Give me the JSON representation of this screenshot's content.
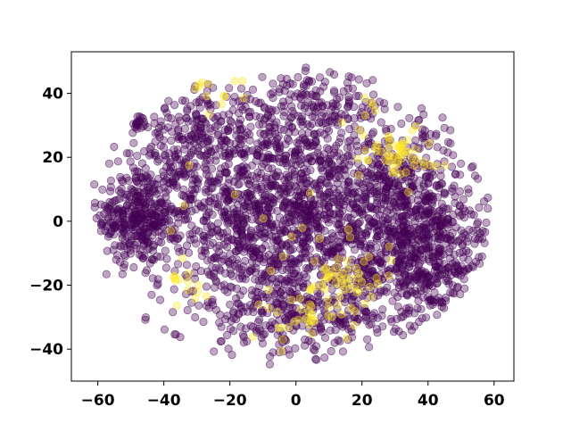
{
  "chart_data": {
    "type": "scatter",
    "title": "",
    "xlabel": "",
    "ylabel": "",
    "xlim": [
      -68,
      66
    ],
    "ylim": [
      -50,
      53
    ],
    "xticks": [
      "−60",
      "−40",
      "−20",
      "0",
      "20",
      "40",
      "60"
    ],
    "xtick_values": [
      -60,
      -40,
      -20,
      0,
      20,
      40,
      60
    ],
    "yticks": [
      "40",
      "20",
      "0",
      "−20",
      "−40"
    ],
    "ytick_values": [
      40,
      20,
      0,
      -20,
      -40
    ],
    "grid": false,
    "legend": "none",
    "point_alpha": 0.35,
    "colors": {
      "class_0": "#440154",
      "class_1": "#fde725",
      "axes": "#000000"
    },
    "series": [
      {
        "color": "#440154",
        "clusters": [
          {
            "cx": -48,
            "cy": 2,
            "sx": 6,
            "sy": 8,
            "n": 320
          },
          {
            "cx": -8,
            "cy": 2,
            "sx": 18,
            "sy": 17,
            "n": 1300
          },
          {
            "cx": 38,
            "cy": -10,
            "sx": 11,
            "sy": 12,
            "n": 600
          },
          {
            "cx": 30,
            "cy": 12,
            "sx": 14,
            "sy": 10,
            "n": 250
          },
          {
            "cx": -30,
            "cy": 25,
            "sx": 12,
            "sy": 8,
            "n": 200
          },
          {
            "cx": 0,
            "cy": -30,
            "sx": 14,
            "sy": 6,
            "n": 200
          },
          {
            "cx": 5,
            "cy": 36,
            "sx": 12,
            "sy": 5,
            "n": 150
          },
          {
            "cx": -48,
            "cy": 31,
            "sx": 1.5,
            "sy": 1.2,
            "n": 16
          },
          {
            "cx": 20,
            "cy": 0,
            "sx": 16,
            "sy": 18,
            "n": 250
          }
        ]
      },
      {
        "color": "#fde725",
        "clusters": [
          {
            "cx": 30,
            "cy": 22,
            "sx": 6,
            "sy": 4,
            "n": 55
          },
          {
            "cx": 15,
            "cy": -18,
            "sx": 5,
            "sy": 4,
            "n": 45
          },
          {
            "cx": 6,
            "cy": -30,
            "sx": 8,
            "sy": 4,
            "n": 35
          },
          {
            "cx": -26,
            "cy": 42,
            "sx": 5,
            "sy": 3,
            "n": 12
          },
          {
            "cx": -33,
            "cy": -22,
            "sx": 4,
            "sy": 6,
            "n": 14
          },
          {
            "cx": 22,
            "cy": 33,
            "sx": 4,
            "sy": 3,
            "n": 6
          },
          {
            "cx": -5,
            "cy": 0,
            "sx": 20,
            "sy": 20,
            "n": 20
          }
        ]
      }
    ]
  }
}
